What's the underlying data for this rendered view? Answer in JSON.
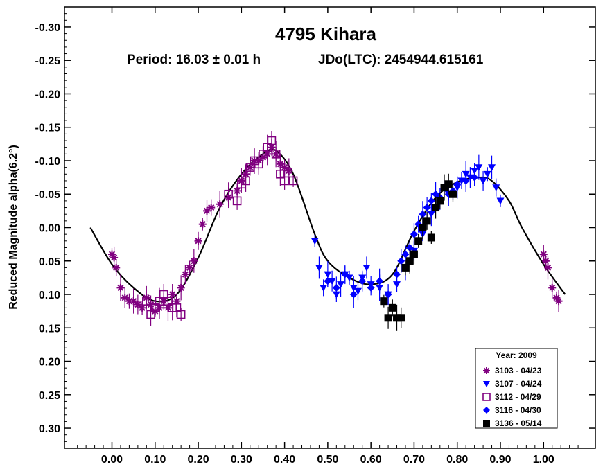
{
  "chart_data": {
    "type": "scatter",
    "title": "4795 Kihara",
    "subtitle_period": "Period: 16.03 ± 0.01 h",
    "subtitle_epoch": "JDo(LTC): 2454944.615161",
    "xlabel": "",
    "ylabel": "Reduced Magnitude alpha(6.2°)",
    "xlim": [
      -0.11,
      1.12
    ],
    "ylim": [
      -0.33,
      0.33
    ],
    "y_inverted": true,
    "x_ticks": [
      0.0,
      0.1,
      0.2,
      0.3,
      0.4,
      0.5,
      0.6,
      0.7,
      0.8,
      0.9,
      1.0
    ],
    "x_tick_labels": [
      "0.00",
      "0.10",
      "0.20",
      "0.30",
      "0.40",
      "0.50",
      "0.60",
      "0.70",
      "0.80",
      "0.90",
      "1.00"
    ],
    "y_ticks": [
      -0.3,
      -0.25,
      -0.2,
      -0.15,
      -0.1,
      -0.05,
      0.0,
      0.05,
      0.1,
      0.15,
      0.2,
      0.25,
      0.3
    ],
    "y_tick_labels": [
      "-0.30",
      "-0.25",
      "-0.20",
      "-0.15",
      "-0.10",
      "-0.05",
      "0.00",
      "0.05",
      "0.10",
      "0.15",
      "0.20",
      "0.25",
      "0.30"
    ],
    "legend": {
      "title": "Year: 2009",
      "position": "bottom-right"
    },
    "fit_curve": {
      "x": [
        -0.05,
        0.0,
        0.05,
        0.1,
        0.15,
        0.2,
        0.25,
        0.3,
        0.35,
        0.38,
        0.42,
        0.47,
        0.5,
        0.55,
        0.6,
        0.65,
        0.7,
        0.75,
        0.8,
        0.85,
        0.88,
        0.92,
        0.95,
        1.0,
        1.05
      ],
      "y": [
        0.0,
        0.055,
        0.09,
        0.11,
        0.1,
        0.045,
        -0.03,
        -0.08,
        -0.11,
        -0.115,
        -0.08,
        0.01,
        0.05,
        0.075,
        0.085,
        0.07,
        0.005,
        -0.045,
        -0.068,
        -0.075,
        -0.07,
        -0.04,
        0.0,
        0.055,
        0.1
      ]
    },
    "series": [
      {
        "name": "3103 - 04/23",
        "color": "#800080",
        "marker": "asterisk",
        "x": [
          0.0,
          0.005,
          0.01,
          0.02,
          0.03,
          0.04,
          0.05,
          0.06,
          0.07,
          0.08,
          0.09,
          0.1,
          0.11,
          0.12,
          0.13,
          0.14,
          0.15,
          0.16,
          0.17,
          0.18,
          0.19,
          0.2,
          0.21,
          0.22,
          0.23,
          0.25,
          0.27,
          0.29,
          0.3,
          0.31,
          0.32,
          0.33,
          0.34,
          0.35,
          0.36,
          0.37,
          0.38,
          0.39,
          0.4,
          0.41,
          1.0,
          1.005,
          1.01,
          1.02,
          1.03,
          1.035
        ],
        "y": [
          0.04,
          0.045,
          0.06,
          0.09,
          0.105,
          0.11,
          0.11,
          0.115,
          0.12,
          0.105,
          0.115,
          0.125,
          0.12,
          0.11,
          0.12,
          0.1,
          0.11,
          0.09,
          0.07,
          0.06,
          0.05,
          0.02,
          -0.005,
          -0.025,
          -0.03,
          -0.035,
          -0.045,
          -0.055,
          -0.07,
          -0.08,
          -0.09,
          -0.1,
          -0.1,
          -0.105,
          -0.11,
          -0.12,
          -0.11,
          -0.095,
          -0.09,
          -0.085,
          0.04,
          0.05,
          0.06,
          0.09,
          0.105,
          0.11
        ]
      },
      {
        "name": "3107 - 04/24",
        "color": "#0000ff",
        "marker": "triangle-down",
        "x": [
          0.47,
          0.48,
          0.49,
          0.5,
          0.51,
          0.52,
          0.53,
          0.54,
          0.55,
          0.56,
          0.57,
          0.58,
          0.59,
          0.6,
          0.62,
          0.64,
          0.66,
          0.68,
          0.7,
          0.72,
          0.74,
          0.76,
          0.78,
          0.8,
          0.81,
          0.82,
          0.83,
          0.84,
          0.85,
          0.86,
          0.87,
          0.88,
          0.89,
          0.9
        ],
        "y": [
          0.02,
          0.06,
          0.09,
          0.07,
          0.08,
          0.1,
          0.085,
          0.07,
          0.075,
          0.09,
          0.095,
          0.075,
          0.06,
          0.085,
          0.09,
          0.1,
          0.085,
          0.06,
          0.035,
          0.01,
          -0.02,
          -0.04,
          -0.05,
          -0.06,
          -0.07,
          -0.08,
          -0.075,
          -0.085,
          -0.09,
          -0.07,
          -0.08,
          -0.09,
          -0.06,
          -0.04
        ]
      },
      {
        "name": "3112 - 04/29",
        "color": "#800080",
        "marker": "square",
        "x": [
          0.08,
          0.09,
          0.1,
          0.11,
          0.12,
          0.13,
          0.14,
          0.15,
          0.16,
          0.27,
          0.29,
          0.3,
          0.31,
          0.32,
          0.33,
          0.34,
          0.35,
          0.36,
          0.37,
          0.38,
          0.39,
          0.4,
          0.42
        ],
        "y": [
          0.11,
          0.13,
          0.12,
          0.11,
          0.1,
          0.11,
          0.12,
          0.12,
          0.13,
          -0.05,
          -0.04,
          -0.065,
          -0.07,
          -0.09,
          -0.1,
          -0.095,
          -0.11,
          -0.12,
          -0.13,
          -0.11,
          -0.08,
          -0.07,
          -0.07
        ]
      },
      {
        "name": "3116 - 04/30",
        "color": "#0000ff",
        "marker": "diamond",
        "x": [
          0.5,
          0.52,
          0.54,
          0.56,
          0.58,
          0.6,
          0.62,
          0.64,
          0.66,
          0.67,
          0.68,
          0.69,
          0.7,
          0.71,
          0.72,
          0.73,
          0.74,
          0.75,
          0.76,
          0.77,
          0.78,
          0.79,
          0.8,
          0.82,
          0.84
        ],
        "y": [
          0.08,
          0.09,
          0.07,
          0.1,
          0.08,
          0.09,
          0.08,
          0.1,
          0.07,
          0.05,
          0.04,
          0.03,
          0.01,
          -0.005,
          -0.02,
          -0.03,
          -0.04,
          -0.05,
          -0.045,
          -0.06,
          -0.05,
          -0.055,
          -0.065,
          -0.07,
          -0.075
        ]
      },
      {
        "name": "3136 - 05/14",
        "color": "#000000",
        "marker": "filled-square",
        "x": [
          0.63,
          0.64,
          0.65,
          0.66,
          0.67,
          0.68,
          0.69,
          0.7,
          0.71,
          0.72,
          0.73,
          0.74,
          0.75,
          0.76,
          0.77,
          0.78,
          0.79
        ],
        "y": [
          0.11,
          0.135,
          0.12,
          0.135,
          0.135,
          0.06,
          0.05,
          0.04,
          0.02,
          0.0,
          -0.01,
          0.015,
          -0.03,
          -0.04,
          -0.06,
          -0.065,
          -0.05
        ]
      }
    ]
  }
}
